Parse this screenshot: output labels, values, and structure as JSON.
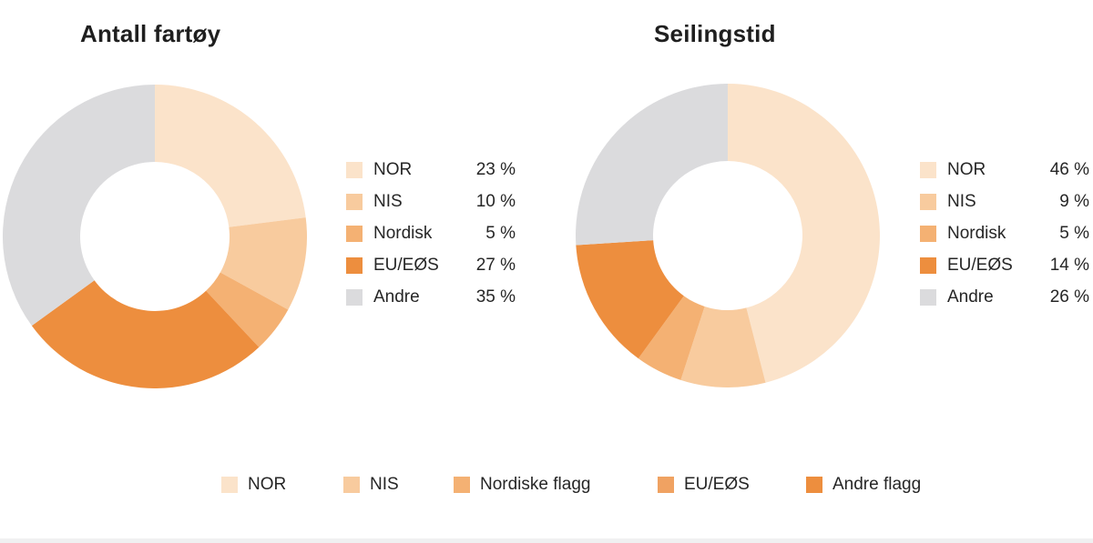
{
  "chart_data": [
    {
      "type": "donut",
      "title": "Antall fartøy",
      "categories": [
        "NOR",
        "NIS",
        "Nordisk",
        "EU/EØS",
        "Andre"
      ],
      "values": [
        23,
        10,
        5,
        27,
        35
      ],
      "value_labels": [
        "23 %",
        "10 %",
        "5 %",
        "27 %",
        "35 %"
      ],
      "colors": [
        "#FBE3CA",
        "#F8CB9E",
        "#F4B173",
        "#ED8E3E",
        "#DBDBDD"
      ],
      "start_angle_deg": 0,
      "direction": "clockwise",
      "inner_radius_ratio": 0.491,
      "legend_position": "right"
    },
    {
      "type": "donut",
      "title": "Seilingstid",
      "categories": [
        "NOR",
        "NIS",
        "Nordisk",
        "EU/EØS",
        "Andre"
      ],
      "values": [
        46,
        9,
        5,
        14,
        26
      ],
      "value_labels": [
        "46 %",
        "9 %",
        "5 %",
        "14 %",
        "26 %"
      ],
      "colors": [
        "#FBE3CA",
        "#F8CB9E",
        "#F4B173",
        "#ED8E3E",
        "#DBDBDD"
      ],
      "start_angle_deg": 0,
      "direction": "clockwise",
      "inner_radius_ratio": 0.491,
      "legend_position": "right"
    }
  ],
  "bottom_legend": {
    "items": [
      {
        "label": "NOR",
        "color": "#FBE3CA"
      },
      {
        "label": "NIS",
        "color": "#F8CB9E"
      },
      {
        "label": "Nordiske flagg",
        "color": "#F4B173"
      },
      {
        "label": "EU/EØS",
        "color": "#F0A262"
      },
      {
        "label": "Andre flagg",
        "color": "#ED8E3E"
      }
    ]
  },
  "footer_bar_color": "#f0f0f1"
}
